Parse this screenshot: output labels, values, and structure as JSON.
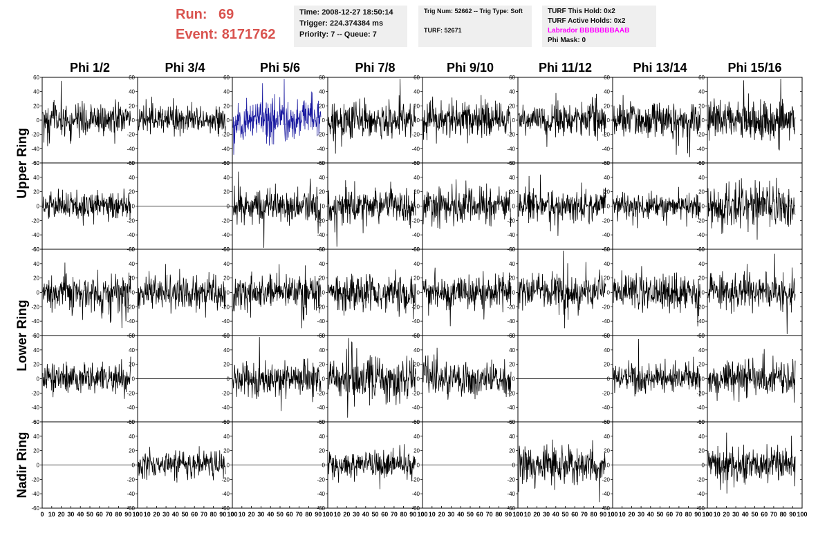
{
  "header": {
    "run_label": "Run:",
    "run_value": "69",
    "event_label": "Event:",
    "event_value": "8171762",
    "time_line": "Time: 2008-12-27 18:50:14",
    "trigger_line": "Trigger: 224.374384 ms",
    "priority_line": "Priority: 7 -- Queue: 7",
    "trig_line": "Trig Num: 52662 -- Trig Type: Soft",
    "turf_line": "TURF: 52671",
    "hold_line": "TURF This Hold: 0x2",
    "active_line": "TURF Active Holds: 0x2",
    "labrador_line": "Labrador BBBBBBBAAB",
    "phimask_line": "Phi Mask: 0"
  },
  "colors": {
    "accent": "#d9534f",
    "highlight_trace": "#1a1aa0",
    "trace": "#000000",
    "labrador": "#ff00ff"
  },
  "chart_data": {
    "type": "line",
    "columns": [
      "Phi 1/2",
      "Phi 3/4",
      "Phi 5/6",
      "Phi 7/8",
      "Phi 9/10",
      "Phi 11/12",
      "Phi 13/14",
      "Phi 15/16"
    ],
    "row_groups": [
      {
        "label": "Upper Ring",
        "rows": [
          0,
          1
        ]
      },
      {
        "label": "Lower Ring",
        "rows": [
          2,
          3
        ]
      },
      {
        "label": "Nadir Ring",
        "rows": [
          4
        ]
      }
    ],
    "ylim": [
      -60,
      60
    ],
    "yticks": [
      "60",
      "40",
      "20",
      "0",
      "-20",
      "-40",
      "-60"
    ],
    "xlim": [
      0,
      100
    ],
    "xticks": [
      "0",
      "10",
      "20",
      "30",
      "40",
      "50",
      "60",
      "70",
      "80",
      "90",
      "100"
    ],
    "highlight_panel": {
      "row": 0,
      "col": 2
    },
    "panels": [
      {
        "row": 0,
        "col": 0,
        "flat": false,
        "amp": 12
      },
      {
        "row": 0,
        "col": 1,
        "flat": false,
        "amp": 9
      },
      {
        "row": 0,
        "col": 2,
        "flat": false,
        "amp": 14
      },
      {
        "row": 0,
        "col": 3,
        "flat": false,
        "amp": 13
      },
      {
        "row": 0,
        "col": 4,
        "flat": false,
        "amp": 12
      },
      {
        "row": 0,
        "col": 5,
        "flat": false,
        "amp": 11
      },
      {
        "row": 0,
        "col": 6,
        "flat": false,
        "amp": 12
      },
      {
        "row": 0,
        "col": 7,
        "flat": false,
        "amp": 14
      },
      {
        "row": 1,
        "col": 0,
        "flat": false,
        "amp": 10
      },
      {
        "row": 1,
        "col": 1,
        "flat": true,
        "amp": 0
      },
      {
        "row": 1,
        "col": 2,
        "flat": false,
        "amp": 11
      },
      {
        "row": 1,
        "col": 3,
        "flat": false,
        "amp": 12
      },
      {
        "row": 1,
        "col": 4,
        "flat": false,
        "amp": 12
      },
      {
        "row": 1,
        "col": 5,
        "flat": false,
        "amp": 11
      },
      {
        "row": 1,
        "col": 6,
        "flat": false,
        "amp": 9
      },
      {
        "row": 1,
        "col": 7,
        "flat": false,
        "amp": 14
      },
      {
        "row": 2,
        "col": 0,
        "flat": false,
        "amp": 13
      },
      {
        "row": 2,
        "col": 1,
        "flat": false,
        "amp": 12
      },
      {
        "row": 2,
        "col": 2,
        "flat": false,
        "amp": 13
      },
      {
        "row": 2,
        "col": 3,
        "flat": false,
        "amp": 12
      },
      {
        "row": 2,
        "col": 4,
        "flat": false,
        "amp": 12
      },
      {
        "row": 2,
        "col": 5,
        "flat": false,
        "amp": 11
      },
      {
        "row": 2,
        "col": 6,
        "flat": false,
        "amp": 12
      },
      {
        "row": 2,
        "col": 7,
        "flat": false,
        "amp": 12
      },
      {
        "row": 3,
        "col": 0,
        "flat": false,
        "amp": 11
      },
      {
        "row": 3,
        "col": 1,
        "flat": true,
        "amp": 0
      },
      {
        "row": 3,
        "col": 2,
        "flat": false,
        "amp": 12
      },
      {
        "row": 3,
        "col": 3,
        "flat": false,
        "amp": 16
      },
      {
        "row": 3,
        "col": 4,
        "flat": false,
        "amp": 11
      },
      {
        "row": 3,
        "col": 5,
        "flat": true,
        "amp": 0
      },
      {
        "row": 3,
        "col": 6,
        "flat": false,
        "amp": 10
      },
      {
        "row": 3,
        "col": 7,
        "flat": false,
        "amp": 12
      },
      {
        "row": 4,
        "col": 0,
        "flat": true,
        "amp": 0
      },
      {
        "row": 4,
        "col": 1,
        "flat": false,
        "amp": 9
      },
      {
        "row": 4,
        "col": 2,
        "flat": true,
        "amp": 0
      },
      {
        "row": 4,
        "col": 3,
        "flat": false,
        "amp": 9
      },
      {
        "row": 4,
        "col": 4,
        "flat": true,
        "amp": 0
      },
      {
        "row": 4,
        "col": 5,
        "flat": false,
        "amp": 13
      },
      {
        "row": 4,
        "col": 6,
        "flat": true,
        "amp": 0
      },
      {
        "row": 4,
        "col": 7,
        "flat": false,
        "amp": 12
      }
    ]
  }
}
